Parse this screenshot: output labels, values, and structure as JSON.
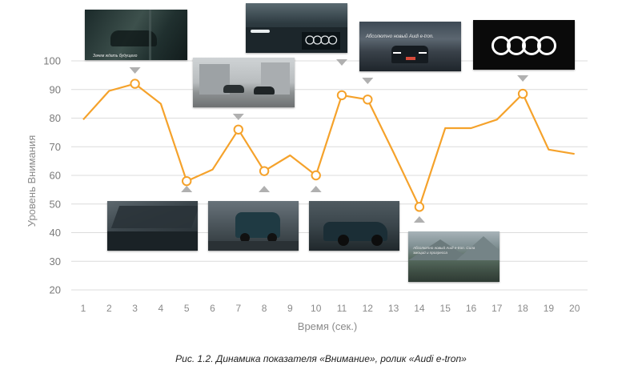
{
  "chart_data": {
    "type": "line",
    "x": [
      1,
      2,
      3,
      4,
      5,
      6,
      7,
      8,
      9,
      10,
      11,
      12,
      13,
      14,
      15,
      16,
      17,
      18,
      19,
      20
    ],
    "y": [
      79.5,
      89.5,
      92,
      85,
      58,
      62,
      76,
      61.5,
      67,
      60,
      88,
      86.5,
      68,
      49,
      76.5,
      76.5,
      79.5,
      88.5,
      69,
      67.5
    ],
    "highlighted_x": [
      3,
      5,
      7,
      8,
      10,
      11,
      12,
      14,
      18
    ],
    "xlabel": "Время (сек.)",
    "ylabel": "Уровень Внимания",
    "ylim": [
      20,
      100
    ],
    "yticks": [
      20,
      30,
      40,
      50,
      60,
      70,
      80,
      90,
      100
    ],
    "xticks": [
      "1",
      "2",
      "3",
      "4",
      "5",
      "6",
      "7",
      "8",
      "9",
      "10",
      "11",
      "12",
      "13",
      "14",
      "15",
      "16",
      "17",
      "18",
      "19",
      "20"
    ],
    "grid": true,
    "colors": {
      "line": "#f5a22b",
      "grid": "#dcdcdc",
      "marker_fill": "#ffffff",
      "arrow": "#b0b0b0"
    }
  },
  "frames": [
    {
      "name": "frame-3",
      "caption_text": "Зачем ждать будущего"
    },
    {
      "name": "frame-7",
      "caption_text": ""
    },
    {
      "name": "frame-11-headlights",
      "caption_text": ""
    },
    {
      "name": "frame-12",
      "caption_text": "Абсолютно новый Audi e-tron."
    },
    {
      "name": "frame-18-logo",
      "caption_text": ""
    },
    {
      "name": "frame-5",
      "caption_text": ""
    },
    {
      "name": "frame-8",
      "caption_text": ""
    },
    {
      "name": "frame-10",
      "caption_text": ""
    },
    {
      "name": "frame-14",
      "caption_text": "Абсолютно новый Audi e-tron. Сила эмоций и прогресса"
    }
  ],
  "caption": "Рис. 1.2. Динамика показателя «Внимание», ролик «Audi e-tron»"
}
